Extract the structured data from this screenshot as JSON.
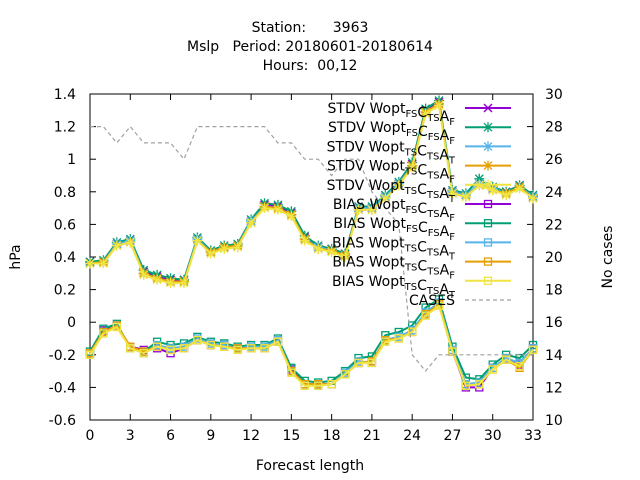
{
  "chart_data": {
    "type": "line",
    "title": [
      "Station:      3963",
      "Mslp   Period: 20180601-20180614",
      "Hours:  00,12"
    ],
    "xlabel": "Forecast length",
    "ylabel": "hPa",
    "y2label": "No cases",
    "xlim": [
      0,
      33
    ],
    "ylim": [
      -0.6,
      1.4
    ],
    "y2lim": [
      10,
      30
    ],
    "xticks": [
      0,
      3,
      6,
      9,
      12,
      15,
      18,
      21,
      24,
      27,
      30,
      33
    ],
    "xtick_labels": [
      "0",
      "3",
      "6",
      "9",
      "12",
      "15",
      "18",
      "21",
      "24",
      "27",
      "30",
      "33"
    ],
    "yticks": [
      -0.6,
      -0.4,
      -0.2,
      0,
      0.2,
      0.4,
      0.6,
      0.8,
      1,
      1.2,
      1.4
    ],
    "ytick_labels": [
      "-0.6",
      "-0.4",
      "-0.2",
      "0",
      "0.2",
      "0.4",
      "0.6",
      "0.8",
      "1",
      "1.2",
      "1.4"
    ],
    "y2ticks": [
      10,
      12,
      14,
      16,
      18,
      20,
      22,
      24,
      26,
      28,
      30
    ],
    "y2tick_labels": [
      "10",
      "12",
      "14",
      "16",
      "18",
      "20",
      "22",
      "24",
      "26",
      "28",
      "30"
    ],
    "grid": false,
    "legend_position": "top-right",
    "x": [
      0,
      1,
      2,
      3,
      4,
      5,
      6,
      7,
      8,
      9,
      10,
      11,
      12,
      13,
      14,
      15,
      16,
      17,
      18,
      19,
      20,
      21,
      22,
      23,
      24,
      25,
      26,
      27,
      28,
      29,
      30,
      31,
      32,
      33
    ],
    "series": [
      {
        "name": "STDV Wopt_FS C_TS A_F",
        "label_parts": [
          [
            "STDV Wopt",
            ""
          ],
          [
            "FS",
            "sub"
          ],
          [
            "C",
            ""
          ],
          [
            "TS",
            "sub"
          ],
          [
            "A",
            ""
          ],
          [
            "F",
            "sub"
          ]
        ],
        "color": "#9400d3",
        "marker": "x",
        "axis": "y1",
        "values": [
          0.37,
          0.37,
          0.48,
          0.5,
          0.31,
          0.28,
          0.26,
          0.26,
          0.51,
          0.43,
          0.46,
          0.47,
          0.62,
          0.72,
          0.71,
          0.67,
          0.52,
          0.46,
          0.45,
          0.42,
          0.7,
          0.7,
          0.77,
          0.85,
          0.97,
          1.3,
          1.35,
          0.8,
          0.78,
          0.84,
          0.82,
          0.8,
          0.84,
          0.77
        ]
      },
      {
        "name": "STDV Wopt_FS C_FS A_F",
        "label_parts": [
          [
            "STDV Wopt",
            ""
          ],
          [
            "FS",
            "sub"
          ],
          [
            "C",
            ""
          ],
          [
            "FS",
            "sub"
          ],
          [
            "A",
            ""
          ],
          [
            "F",
            "sub"
          ]
        ],
        "color": "#009e73",
        "marker": "star",
        "axis": "y1",
        "values": [
          0.37,
          0.38,
          0.49,
          0.51,
          0.32,
          0.29,
          0.27,
          0.26,
          0.52,
          0.44,
          0.47,
          0.48,
          0.63,
          0.73,
          0.72,
          0.68,
          0.53,
          0.47,
          0.45,
          0.42,
          0.71,
          0.71,
          0.78,
          0.86,
          0.98,
          1.31,
          1.36,
          0.81,
          0.79,
          0.88,
          0.83,
          0.8,
          0.84,
          0.78
        ]
      },
      {
        "name": "STDV Wopt_TS C_TS A_T",
        "label_parts": [
          [
            "STDV Wopt",
            ""
          ],
          [
            "TS",
            "sub"
          ],
          [
            "C",
            ""
          ],
          [
            "TS",
            "sub"
          ],
          [
            "A",
            ""
          ],
          [
            "T",
            "sub"
          ]
        ],
        "color": "#56b4e9",
        "marker": "star",
        "axis": "y1",
        "values": [
          0.36,
          0.37,
          0.48,
          0.5,
          0.3,
          0.27,
          0.25,
          0.25,
          0.51,
          0.43,
          0.46,
          0.47,
          0.62,
          0.71,
          0.7,
          0.66,
          0.51,
          0.46,
          0.44,
          0.41,
          0.7,
          0.7,
          0.77,
          0.85,
          0.96,
          1.29,
          1.34,
          0.8,
          0.78,
          0.85,
          0.82,
          0.79,
          0.83,
          0.77
        ]
      },
      {
        "name": "STDV Wopt_TS C_TS A_F",
        "label_parts": [
          [
            "STDV Wopt",
            ""
          ],
          [
            "TS",
            "sub"
          ],
          [
            "C",
            ""
          ],
          [
            "TS",
            "sub"
          ],
          [
            "A",
            ""
          ],
          [
            "F",
            "sub"
          ]
        ],
        "color": "#e69f00",
        "marker": "star",
        "axis": "y1",
        "values": [
          0.36,
          0.37,
          0.47,
          0.49,
          0.3,
          0.27,
          0.25,
          0.25,
          0.5,
          0.43,
          0.46,
          0.47,
          0.61,
          0.71,
          0.7,
          0.66,
          0.51,
          0.45,
          0.44,
          0.41,
          0.69,
          0.69,
          0.76,
          0.84,
          0.96,
          1.29,
          1.34,
          0.79,
          0.77,
          0.84,
          0.81,
          0.79,
          0.83,
          0.76
        ]
      },
      {
        "name": "STDV Wopt_TS C_TS A_T",
        "label_parts": [
          [
            "STDV Wopt",
            ""
          ],
          [
            "TS",
            "sub"
          ],
          [
            "C",
            ""
          ],
          [
            "TS",
            "sub"
          ],
          [
            "A",
            ""
          ],
          [
            "T",
            "sub"
          ]
        ],
        "color": "#f0e442",
        "marker": "star",
        "axis": "y1",
        "values": [
          0.36,
          0.36,
          0.47,
          0.49,
          0.29,
          0.26,
          0.24,
          0.24,
          0.5,
          0.42,
          0.45,
          0.46,
          0.61,
          0.7,
          0.69,
          0.65,
          0.5,
          0.45,
          0.43,
          0.4,
          0.69,
          0.69,
          0.76,
          0.84,
          0.95,
          1.28,
          1.33,
          0.79,
          0.77,
          0.84,
          0.81,
          0.78,
          0.82,
          0.76
        ]
      },
      {
        "name": "BIAS Wopt_FS C_TS A_F",
        "label_parts": [
          [
            "BIAS Wopt",
            ""
          ],
          [
            "FS",
            "sub"
          ],
          [
            "C",
            ""
          ],
          [
            "TS",
            "sub"
          ],
          [
            "A",
            ""
          ],
          [
            "F",
            "sub"
          ]
        ],
        "color": "#9400d3",
        "marker": "square",
        "axis": "y1",
        "values": [
          -0.19,
          -0.05,
          -0.02,
          -0.15,
          -0.17,
          -0.16,
          -0.19,
          -0.16,
          -0.11,
          -0.14,
          -0.14,
          -0.16,
          -0.16,
          -0.16,
          -0.12,
          -0.29,
          -0.38,
          -0.38,
          -0.38,
          -0.32,
          -0.25,
          -0.24,
          -0.11,
          -0.09,
          -0.05,
          0.05,
          0.12,
          -0.18,
          -0.4,
          -0.4,
          -0.28,
          -0.22,
          -0.26,
          -0.16
        ]
      },
      {
        "name": "BIAS Wopt_FS C_FS A_F",
        "label_parts": [
          [
            "BIAS Wopt",
            ""
          ],
          [
            "FS",
            "sub"
          ],
          [
            "C",
            ""
          ],
          [
            "FS",
            "sub"
          ],
          [
            "A",
            ""
          ],
          [
            "F",
            "sub"
          ]
        ],
        "color": "#009e73",
        "marker": "square",
        "axis": "y1",
        "values": [
          -0.18,
          -0.04,
          -0.01,
          -0.16,
          -0.18,
          -0.12,
          -0.14,
          -0.13,
          -0.09,
          -0.12,
          -0.13,
          -0.15,
          -0.14,
          -0.14,
          -0.1,
          -0.28,
          -0.36,
          -0.37,
          -0.36,
          -0.3,
          -0.22,
          -0.21,
          -0.08,
          -0.06,
          -0.02,
          0.09,
          0.14,
          -0.15,
          -0.34,
          -0.35,
          -0.26,
          -0.2,
          -0.22,
          -0.14
        ]
      },
      {
        "name": "BIAS Wopt_TS C_TS A_T",
        "label_parts": [
          [
            "BIAS Wopt",
            ""
          ],
          [
            "TS",
            "sub"
          ],
          [
            "C",
            ""
          ],
          [
            "TS",
            "sub"
          ],
          [
            "A",
            ""
          ],
          [
            "T",
            "sub"
          ]
        ],
        "color": "#56b4e9",
        "marker": "square",
        "axis": "y1",
        "values": [
          -0.19,
          -0.06,
          -0.02,
          -0.16,
          -0.19,
          -0.14,
          -0.16,
          -0.15,
          -0.1,
          -0.13,
          -0.14,
          -0.16,
          -0.15,
          -0.15,
          -0.11,
          -0.3,
          -0.38,
          -0.39,
          -0.38,
          -0.31,
          -0.24,
          -0.25,
          -0.11,
          -0.09,
          -0.05,
          0.06,
          0.12,
          -0.17,
          -0.38,
          -0.37,
          -0.28,
          -0.22,
          -0.25,
          -0.16
        ]
      },
      {
        "name": "BIAS Wopt_TS C_TS A_F",
        "label_parts": [
          [
            "BIAS Wopt",
            ""
          ],
          [
            "TS",
            "sub"
          ],
          [
            "C",
            ""
          ],
          [
            "TS",
            "sub"
          ],
          [
            "A",
            ""
          ],
          [
            "F",
            "sub"
          ]
        ],
        "color": "#e69f00",
        "marker": "square",
        "axis": "y1",
        "values": [
          -0.19,
          -0.06,
          -0.02,
          -0.15,
          -0.18,
          -0.15,
          -0.17,
          -0.16,
          -0.11,
          -0.14,
          -0.15,
          -0.16,
          -0.16,
          -0.16,
          -0.12,
          -0.3,
          -0.38,
          -0.38,
          -0.38,
          -0.32,
          -0.25,
          -0.24,
          -0.11,
          -0.1,
          -0.06,
          0.05,
          0.11,
          -0.18,
          -0.39,
          -0.38,
          -0.29,
          -0.23,
          -0.28,
          -0.17
        ]
      },
      {
        "name": "BIAS Wopt_TS C_TS A_T",
        "label_parts": [
          [
            "BIAS Wopt",
            ""
          ],
          [
            "TS",
            "sub"
          ],
          [
            "C",
            ""
          ],
          [
            "TS",
            "sub"
          ],
          [
            "A",
            ""
          ],
          [
            "T",
            "sub"
          ]
        ],
        "color": "#f0e442",
        "marker": "square",
        "axis": "y1",
        "values": [
          -0.2,
          -0.07,
          -0.03,
          -0.16,
          -0.19,
          -0.15,
          -0.17,
          -0.16,
          -0.11,
          -0.14,
          -0.15,
          -0.17,
          -0.16,
          -0.16,
          -0.12,
          -0.31,
          -0.39,
          -0.39,
          -0.38,
          -0.32,
          -0.25,
          -0.25,
          -0.12,
          -0.1,
          -0.06,
          0.04,
          0.1,
          -0.18,
          -0.39,
          -0.38,
          -0.29,
          -0.23,
          -0.27,
          -0.17
        ]
      },
      {
        "name": "CASES",
        "label_parts": [
          [
            "CASES",
            ""
          ]
        ],
        "color": "#a0a0a0",
        "marker": "none",
        "dashed": true,
        "axis": "y2",
        "values": [
          28,
          28,
          27,
          28,
          27,
          27,
          27,
          26,
          28,
          28,
          28,
          28,
          28,
          28,
          27,
          27,
          26,
          26,
          25,
          26,
          26,
          24,
          23,
          22,
          14,
          13,
          14,
          14,
          14,
          14,
          14,
          14,
          14,
          14
        ]
      }
    ]
  }
}
